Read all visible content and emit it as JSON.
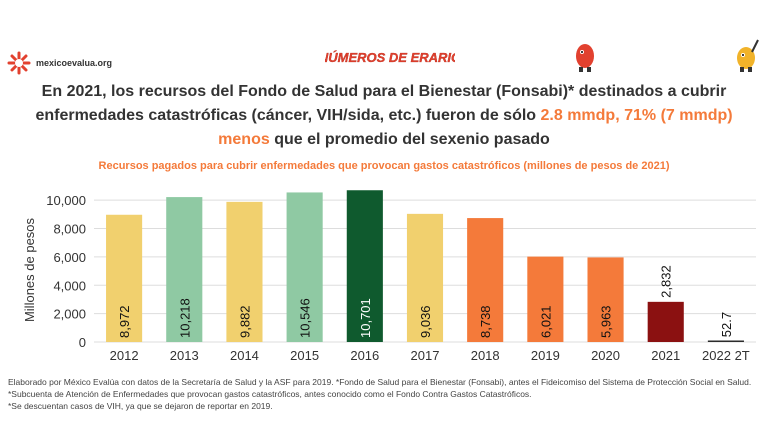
{
  "brand": {
    "name": "mexicoevalua.org"
  },
  "campaign": {
    "logo_text": "NÚMEROS DE ERARIO"
  },
  "headline": {
    "part1": "En 2021, los recursos del Fondo de Salud para el Bienestar (Fonsabi)* destinados a cubrir enfermedades catastróficas (cáncer, VIH/sida, etc.) fueron de sólo ",
    "highlight1": "2.8 mmdp, 71% (7 mmdp) menos",
    "part2": " que el promedio del sexenio pasado"
  },
  "chart_data": {
    "type": "bar",
    "title": "Recursos pagados para cubrir enfermedades que provocan gastos catastróficos (millones de pesos de 2021)",
    "xlabel": "",
    "ylabel": "Millones de pesos",
    "ylim": [
      0,
      11000
    ],
    "yticks": [
      0,
      2000,
      4000,
      6000,
      8000,
      10000
    ],
    "ytick_labels": [
      "0",
      "2,000",
      "4,000",
      "6,000",
      "8,000",
      "10,000"
    ],
    "grid": true,
    "categories": [
      "2012",
      "2013",
      "2014",
      "2015",
      "2016",
      "2017",
      "2018",
      "2019",
      "2020",
      "2021",
      "2022 2T"
    ],
    "values": [
      8972,
      10218,
      9882,
      10546,
      10701,
      9036,
      8738,
      6021,
      5963,
      2832,
      52.7
    ],
    "value_labels": [
      "8,972",
      "10,218",
      "9,882",
      "10,546",
      "10,701",
      "9,036",
      "8,738",
      "6,021",
      "5,963",
      "2,832",
      "52.7"
    ],
    "colors": [
      "#f1d06e",
      "#8fc9a3",
      "#f1d06e",
      "#8fc9a3",
      "#0f5a2e",
      "#f1d06e",
      "#f47a3a",
      "#f47a3a",
      "#f47a3a",
      "#8b1111",
      "#2b2b2b"
    ]
  },
  "footnote": {
    "line1": "Elaborado por México Evalúa con datos de la Secretaría de Salud y la ASF para 2019. *Fondo de Salud para el Bienestar (Fonsabi), antes el Fideicomiso del Sistema de Protección Social en Salud. *Subcuenta de Atención de Enfermedades que provocan gastos catastróficos, antes conocido como el Fondo Contra Gastos Catastróficos.",
    "line2": "*Se descuentan casos de VIH, ya que se dejaron de reportar en 2019."
  }
}
